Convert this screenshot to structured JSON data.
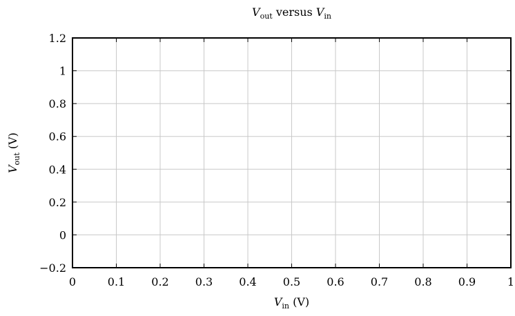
{
  "chart_data": {
    "type": "line",
    "title": {
      "var1_main": "V",
      "var1_sub": "out",
      "middle": " versus ",
      "var2_main": "V",
      "var2_sub": "in"
    },
    "xlabel": {
      "main": "V",
      "sub": "in",
      "unit": " (V)"
    },
    "ylabel": {
      "main": "V",
      "sub": "out",
      "unit": " (V)"
    },
    "xlim": [
      0,
      1
    ],
    "ylim": [
      -0.2,
      1.2
    ],
    "xticks": [
      0,
      0.1,
      0.2,
      0.3,
      0.4,
      0.5,
      0.6,
      0.7,
      0.8,
      0.9,
      1
    ],
    "xtick_labels": [
      "0",
      "0.1",
      "0.2",
      "0.3",
      "0.4",
      "0.5",
      "0.6",
      "0.7",
      "0.8",
      "0.9",
      "1"
    ],
    "yticks": [
      -0.2,
      0,
      0.2,
      0.4,
      0.6,
      0.8,
      1,
      1.2
    ],
    "ytick_labels": [
      "−0.2",
      "0",
      "0.2",
      "0.4",
      "0.6",
      "0.8",
      "1",
      "1.2"
    ],
    "grid": true,
    "series": []
  },
  "colors": {
    "grid": "#c8c8c8",
    "axis": "#000000",
    "background": "#ffffff"
  }
}
